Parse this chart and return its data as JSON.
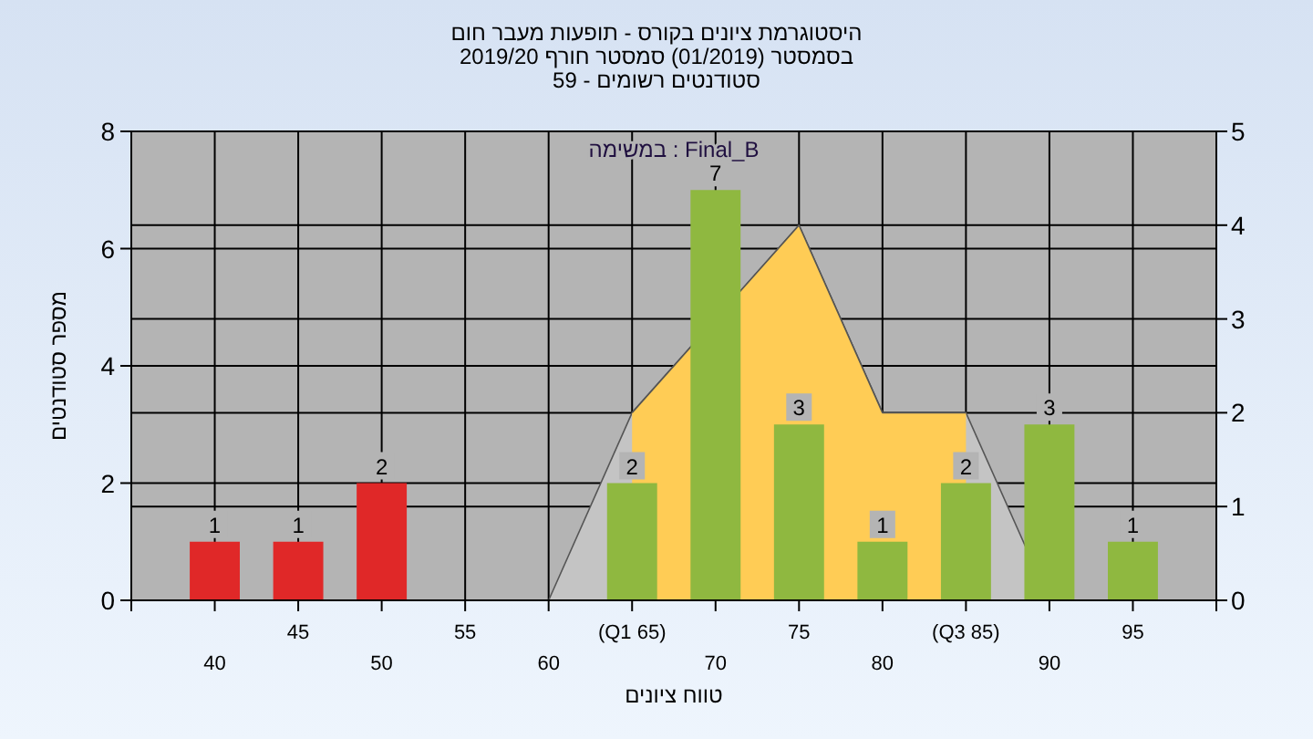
{
  "chart_data": {
    "type": "bar",
    "title": "היסטוגרמת ציונים בקורס - תופעות מעבר חום",
    "subtitle": "בסמסטר  (01/2019)  סמסטר חורף 2019/20\nסטודנטים רשומים - 59",
    "xlabel": "טווח ציונים",
    "ylabel": "מספר סטודנטים",
    "annotations": [
      "במשימה : Final_B"
    ],
    "categories": [
      "40",
      "45",
      "50",
      "55",
      "60",
      "(Q1 65)",
      "70",
      "75",
      "80",
      "(Q3 85)",
      "90",
      "95"
    ],
    "series": [
      {
        "type": "area",
        "axis": "y2",
        "color": "#c4c4c4",
        "x": [
          "60",
          "(Q1 65)",
          "75",
          "80",
          "(Q3 85)",
          "90"
        ],
        "values": [
          0,
          2,
          4,
          2,
          2,
          0
        ]
      },
      {
        "type": "area",
        "axis": "y2",
        "color": "#ffcc55",
        "x": [
          "(Q1 65)",
          "75",
          "80",
          "(Q3 85)"
        ],
        "values": [
          2,
          4,
          2,
          2
        ]
      },
      {
        "colors": [
          "#e02828",
          "#e02828",
          "#e02828",
          "#8fb840",
          "#8fb840",
          "#8fb840",
          "#8fb840",
          "#8fb840",
          "#8fb840",
          "#8fb840",
          "#8fb840",
          "#8fb840"
        ],
        "values": [
          1,
          1,
          2,
          null,
          null,
          2,
          7,
          3,
          1,
          2,
          3,
          1
        ],
        "value_labels": [
          "1",
          "1",
          "2",
          null,
          null,
          "2",
          "7",
          "3",
          "1",
          "2",
          "3",
          "1"
        ]
      }
    ],
    "ylim": [
      0,
      8
    ],
    "yticks": [
      0,
      2,
      4,
      6,
      8
    ],
    "y2lim": [
      0,
      5
    ],
    "y2ticks": [
      0,
      1,
      2,
      3,
      4,
      5
    ],
    "grid": true
  }
}
